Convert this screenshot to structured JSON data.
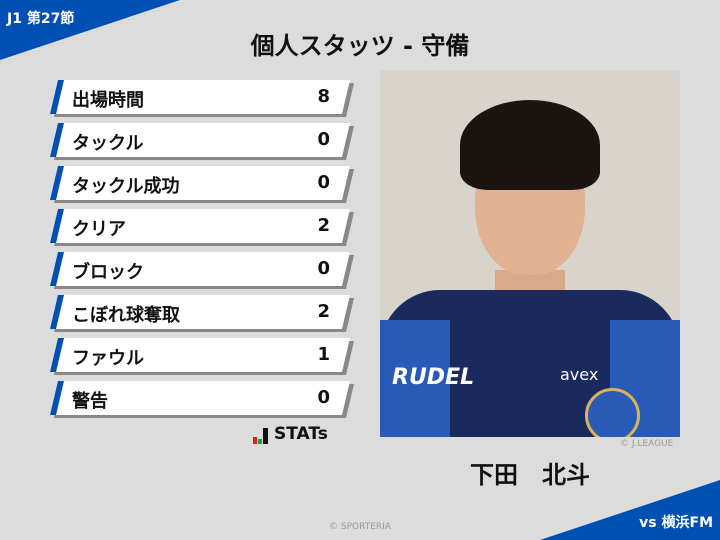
{
  "header": {
    "round": "J1 第27節",
    "title": "個人スタッツ - 守備",
    "opponent": "vs 横浜FM"
  },
  "stats": [
    {
      "label": "出場時間",
      "value": "8"
    },
    {
      "label": "タックル",
      "value": "0"
    },
    {
      "label": "タックル成功",
      "value": "0"
    },
    {
      "label": "クリア",
      "value": "2"
    },
    {
      "label": "ブロック",
      "value": "0"
    },
    {
      "label": "こぼれ球奪取",
      "value": "2"
    },
    {
      "label": "ファウル",
      "value": "1"
    },
    {
      "label": "警告",
      "value": "0"
    }
  ],
  "stats_logo": "STATs",
  "player": {
    "name": "下田　北斗",
    "photo_credit": "© J.LEAGUE",
    "jersey_sponsor": "RUDEL",
    "jersey_sponsor2": "avex"
  },
  "footer": {
    "copyright": "© SPORTERIA"
  },
  "colors": {
    "accent": "#0050b4",
    "background": "#dcdcdc"
  }
}
